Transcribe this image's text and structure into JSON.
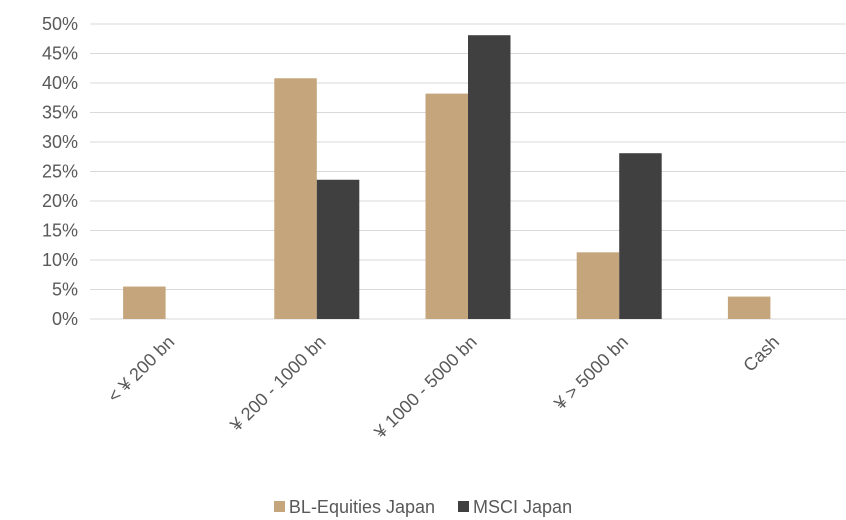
{
  "colors": {
    "bl": "#c4a57c",
    "msci": "#404040",
    "grid": "#d9d9d9",
    "axis": "#d9d9d9",
    "text": "#595959"
  },
  "chart_data": {
    "type": "bar",
    "title": "",
    "xlabel": "",
    "ylabel": "",
    "categories": [
      "< ¥ 200 bn",
      "¥ 200 - 1000 bn",
      "¥ 1000 - 5000 bn",
      "¥ > 5000 bn",
      "Cash"
    ],
    "series": [
      {
        "name": "BL-Equities Japan",
        "values": [
          5.5,
          40.8,
          38.2,
          11.3,
          3.8
        ]
      },
      {
        "name": "MSCI Japan",
        "values": [
          0,
          23.6,
          48.1,
          28.1,
          0
        ]
      }
    ],
    "ylim": [
      0,
      50
    ],
    "yticks": [
      0,
      5,
      10,
      15,
      20,
      25,
      30,
      35,
      40,
      45,
      50
    ],
    "ytick_labels": [
      "0%",
      "5%",
      "10%",
      "15%",
      "20%",
      "25%",
      "30%",
      "35%",
      "40%",
      "45%",
      "50%"
    ],
    "grid": true,
    "legend_position": "bottom"
  }
}
